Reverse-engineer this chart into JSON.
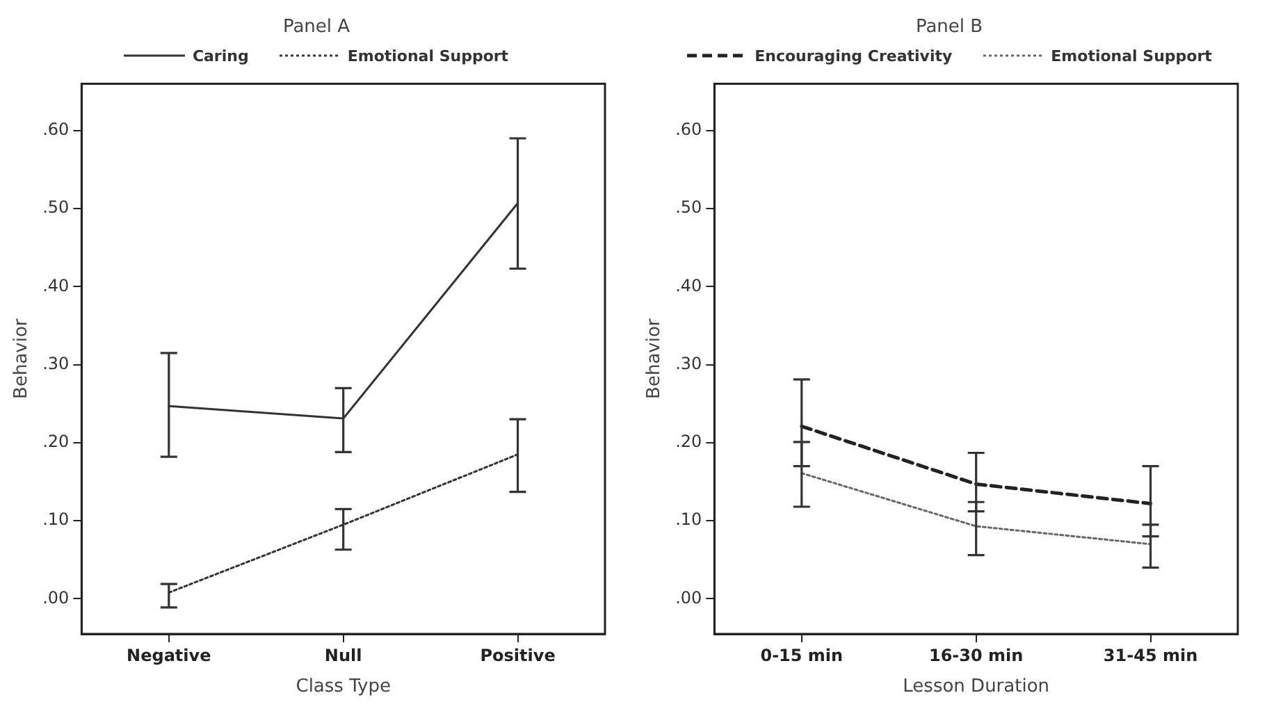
{
  "chart_data": [
    {
      "type": "line",
      "title": "Panel A",
      "xlabel": "Class Type",
      "ylabel": "Behavior",
      "categories": [
        "Negative",
        "Null",
        "Positive"
      ],
      "ylim": [
        -0.045,
        0.66
      ],
      "yticks": [
        {
          "value": 0,
          "label": ".00"
        },
        {
          "value": 0.1,
          "label": ".10"
        },
        {
          "value": 0.2,
          "label": ".20"
        },
        {
          "value": 0.3,
          "label": ".30"
        },
        {
          "value": 0.4,
          "label": ".40"
        },
        {
          "value": 0.5,
          "label": ".50"
        },
        {
          "value": 0.6,
          "label": ".60"
        }
      ],
      "grid": false,
      "legend": "top",
      "marker": "none",
      "series": [
        {
          "name": "Caring",
          "color": "#333333",
          "line_style": "solid",
          "values": [
            0.247,
            0.231,
            0.507
          ],
          "errors": [
            [
              0.182,
              0.315
            ],
            [
              0.188,
              0.27
            ],
            [
              0.423,
              0.59
            ]
          ]
        },
        {
          "name": "Emotional Support",
          "color": "#333333",
          "line_style": "dotted",
          "values": [
            0.008,
            0.095,
            0.185
          ],
          "errors": [
            [
              -0.011,
              0.019
            ],
            [
              0.063,
              0.115
            ],
            [
              0.137,
              0.23
            ]
          ]
        }
      ]
    },
    {
      "type": "line",
      "title": "Panel B",
      "xlabel": "Lesson Duration",
      "ylabel": "Behavior",
      "categories": [
        "0-15 min",
        "16-30 min",
        "31-45 min"
      ],
      "ylim": [
        -0.045,
        0.66
      ],
      "yticks": [
        {
          "value": 0,
          "label": ".00"
        },
        {
          "value": 0.1,
          "label": ".10"
        },
        {
          "value": 0.2,
          "label": ".20"
        },
        {
          "value": 0.3,
          "label": ".30"
        },
        {
          "value": 0.4,
          "label": ".40"
        },
        {
          "value": 0.5,
          "label": ".50"
        },
        {
          "value": 0.6,
          "label": ".60"
        }
      ],
      "grid": false,
      "legend": "top",
      "marker": "none",
      "series": [
        {
          "name": "Encouraging Creativity",
          "color": "#222222",
          "line_style": "dashed",
          "values": [
            0.221,
            0.147,
            0.122
          ],
          "errors": [
            [
              0.17,
              0.281
            ],
            [
              0.112,
              0.187
            ],
            [
              0.08,
              0.17
            ]
          ]
        },
        {
          "name": "Emotional Support",
          "color": "#666666",
          "line_style": "dotted",
          "values": [
            0.161,
            0.093,
            0.07
          ],
          "errors": [
            [
              0.118,
              0.201
            ],
            [
              0.056,
              0.124
            ],
            [
              0.04,
              0.095
            ]
          ]
        }
      ]
    }
  ]
}
